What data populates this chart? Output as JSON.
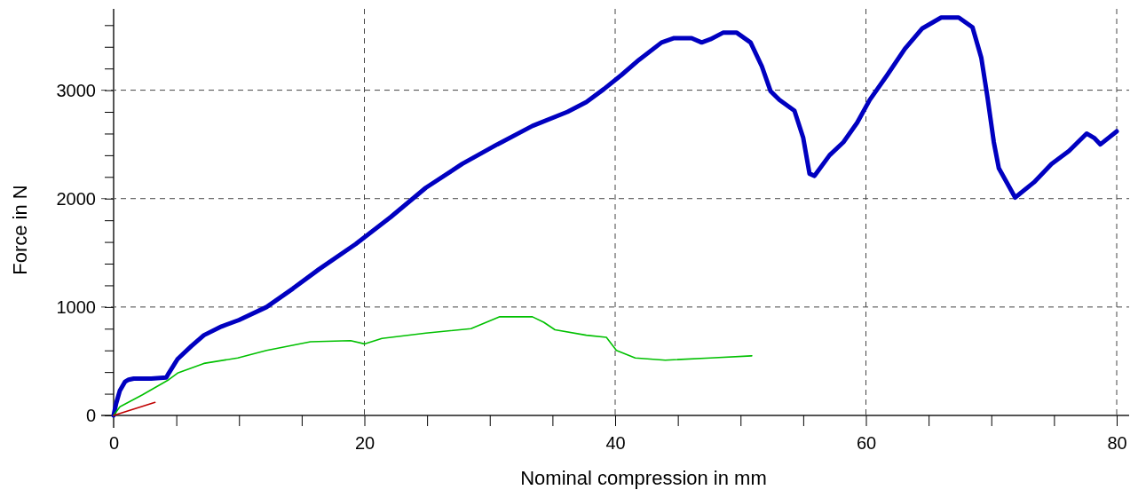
{
  "chart_data": {
    "type": "line",
    "xlabel": "Nominal compression in mm",
    "ylabel": "Force in N",
    "xlim": [
      0,
      80
    ],
    "ylim": [
      0,
      3750
    ],
    "xticks": [
      0,
      {
        "value": 5,
        "label": null
      },
      {
        "value": 10,
        "label": null
      },
      {
        "value": 15,
        "label": null
      },
      20,
      {
        "value": 25,
        "label": null
      },
      {
        "value": 30,
        "label": null
      },
      {
        "value": 35,
        "label": null
      },
      40,
      {
        "value": 45,
        "label": null
      },
      {
        "value": 50,
        "label": null
      },
      {
        "value": 55,
        "label": null
      },
      60,
      {
        "value": 65,
        "label": null
      },
      {
        "value": 70,
        "label": null
      },
      {
        "value": 75,
        "label": null
      },
      80
    ],
    "yticks": [
      0,
      {
        "value": 200,
        "label": null
      },
      {
        "value": 400,
        "label": null
      },
      {
        "value": 600,
        "label": null
      },
      {
        "value": 800,
        "label": null
      },
      1000,
      {
        "value": 1200,
        "label": null
      },
      {
        "value": 1400,
        "label": null
      },
      {
        "value": 1600,
        "label": null
      },
      {
        "value": 1800,
        "label": null
      },
      2000,
      {
        "value": 2200,
        "label": null
      },
      {
        "value": 2400,
        "label": null
      },
      {
        "value": 2600,
        "label": null
      },
      {
        "value": 2800,
        "label": null
      },
      3000,
      {
        "value": 3200,
        "label": null
      },
      {
        "value": 3400,
        "label": null
      },
      {
        "value": 3600,
        "label": null
      }
    ],
    "grid": true,
    "line_style": "solid",
    "marker": "none",
    "series": [
      {
        "color": "#0000c0",
        "x": [
          0,
          0.2,
          0.5,
          0.9,
          1.2,
          1.6,
          3,
          4.2,
          4.4,
          5.1,
          6.2,
          7.2,
          8.6,
          10,
          12.2,
          14.3,
          16.4,
          19.3,
          22.1,
          24.9,
          27.8,
          30.6,
          33.4,
          36.2,
          37.7,
          39.1,
          40.5,
          41.9,
          43.7,
          44.7,
          46.1,
          46.9,
          47.6,
          48.6,
          49.7,
          50.8,
          51.7,
          52.4,
          53.1,
          54.3,
          55,
          55.5,
          55.9,
          57.1,
          58.2,
          59.3,
          60.3,
          61.7,
          63.1,
          64.5,
          66,
          67.4,
          68.5,
          69.2,
          69.7,
          70.2,
          70.6,
          71.9,
          73.4,
          74.8,
          76.2,
          77.6,
          78.2,
          78.7,
          80
        ],
        "values": [
          0,
          110,
          230,
          310,
          330,
          340,
          340,
          350,
          390,
          520,
          640,
          740,
          820,
          880,
          1000,
          1170,
          1350,
          1580,
          1830,
          2100,
          2320,
          2500,
          2670,
          2800,
          2890,
          3010,
          3140,
          3280,
          3440,
          3480,
          3480,
          3440,
          3470,
          3530,
          3530,
          3440,
          3220,
          2990,
          2910,
          2810,
          2560,
          2230,
          2210,
          2400,
          2520,
          2700,
          2910,
          3140,
          3380,
          3570,
          3670,
          3670,
          3580,
          3300,
          2930,
          2520,
          2280,
          2010,
          2150,
          2320,
          2440,
          2600,
          2560,
          2500,
          2620
        ]
      },
      {
        "color": "#00c000",
        "x": [
          0,
          0.5,
          2.3,
          4.4,
          5.1,
          7.2,
          9.9,
          12.2,
          15.7,
          18.9,
          20,
          21.4,
          24.9,
          28.5,
          30.8,
          33.4,
          34.3,
          35.2,
          37.7,
          39.3,
          40.1,
          41.6,
          44,
          47.6,
          50.9
        ],
        "values": [
          0,
          80,
          190,
          330,
          390,
          480,
          530,
          600,
          680,
          690,
          660,
          710,
          760,
          800,
          910,
          910,
          860,
          790,
          740,
          720,
          600,
          530,
          510,
          530,
          550
        ]
      },
      {
        "color": "#c00000",
        "x": [
          0,
          3.3
        ],
        "values": [
          0,
          120
        ]
      }
    ]
  }
}
